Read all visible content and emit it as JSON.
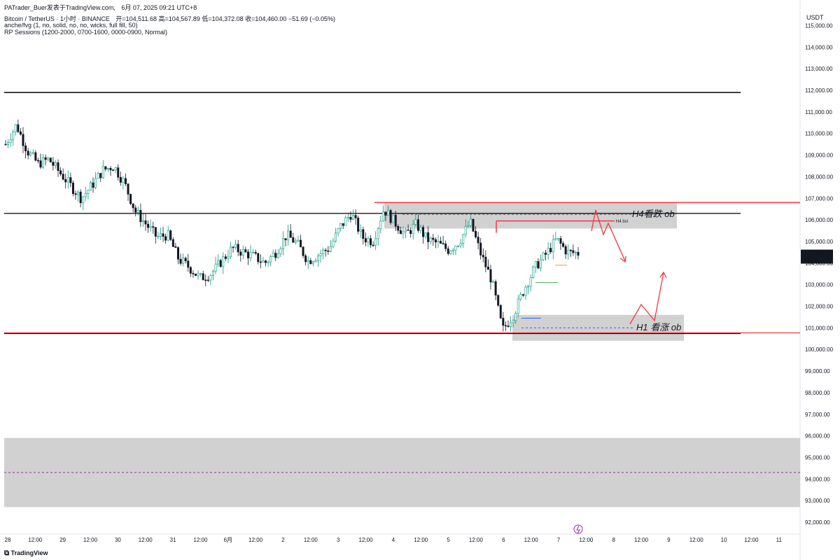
{
  "header": {
    "publisher": "PATrader_Buer发表于TradingView.com,",
    "datetime": "6月 07, 2025 09:21 UTC+8",
    "symbol_line": "Bitcoin / TetherUS · 1小时 · BINANCE",
    "ohlc": "开=104,511.68  高=104,567.89  低=104,372.08  收=104,460.00  −51.69 (−0.05%)",
    "indicator_1": "anche/fvg (1, no, solid, no, no, wicks, full fill, 50)",
    "indicator_2": "RP Sessions (1200-2000, 0700-1600, 0000-0900, Normal)"
  },
  "currency": "USDT",
  "footer_brand": "TradingView",
  "last_price": {
    "value": "104,460.00",
    "countdown": "38:51"
  },
  "colors": {
    "up": "#089981",
    "down": "#131722",
    "zone": "#d1d1d1",
    "red": "#f23645",
    "hline": "#000000",
    "purple": "#9c27b0",
    "blue": "#2962ff",
    "green": "#4caf50",
    "orange": "#ff9800"
  },
  "annotations": {
    "h4_bear": "H4看跌 ob",
    "h1_bull": "H1 看涨 ob",
    "h4_bsl": "H4 bsl"
  },
  "chart_data": {
    "type": "candlestick",
    "title": "",
    "xlabel": "",
    "ylabel": "",
    "ylim": [
      91500,
      115500
    ],
    "y_ticks": [
      92000,
      93000,
      94000,
      95000,
      96000,
      97000,
      98000,
      99000,
      100000,
      101000,
      102000,
      103000,
      104000,
      105000,
      106000,
      107000,
      108000,
      109000,
      110000,
      111000,
      112000,
      113000,
      114000,
      115000
    ],
    "y_tick_labels": [
      "92,000.00",
      "93,000.00",
      "94,000.00",
      "95,000.00",
      "96,000.00",
      "97,000.00",
      "98,000.00",
      "99,000.00",
      "100,000.00",
      "101,000.00",
      "102,000.00",
      "103,000.00",
      "104,000.00",
      "105,000.00",
      "106,000.00",
      "107,000.00",
      "108,000.00",
      "109,000.00",
      "110,000.00",
      "111,000.00",
      "112,000.00",
      "113,000.00",
      "114,000.00",
      "115,000.00"
    ],
    "x_tick_labels": [
      "28",
      "12:00",
      "29",
      "12:00",
      "30",
      "12:00",
      "31",
      "12:00",
      "6月",
      "12:00",
      "2",
      "12:00",
      "3",
      "12:00",
      "4",
      "12:00",
      "5",
      "12:00",
      "6",
      "12:00",
      "7",
      "12:00",
      "8",
      "12:00",
      "9",
      "12:00",
      "10",
      "12:00",
      "11"
    ],
    "horizontal_levels": [
      111900,
      106300,
      100750
    ],
    "red_levels": [
      106800,
      100800
    ],
    "zones": [
      {
        "name": "H4 bearish ob",
        "from": 105600,
        "to": 106800
      },
      {
        "name": "H1 bullish ob",
        "from": 100400,
        "to": 101600
      },
      {
        "name": "lower zone",
        "from": 92700,
        "to": 95900,
        "mid": 94300
      }
    ],
    "price_path": [
      [
        0,
        109500
      ],
      [
        1,
        110400
      ],
      [
        2,
        109200
      ],
      [
        3,
        108600
      ],
      [
        4,
        108800
      ],
      [
        5,
        108200
      ],
      [
        6,
        107600
      ],
      [
        7,
        107000
      ],
      [
        8,
        107600
      ],
      [
        9,
        108300
      ],
      [
        10,
        108500
      ],
      [
        11,
        107700
      ],
      [
        12,
        106400
      ],
      [
        13,
        105800
      ],
      [
        14,
        105200
      ],
      [
        15,
        105300
      ],
      [
        16,
        104200
      ],
      [
        17,
        103800
      ],
      [
        18,
        103300
      ],
      [
        19,
        103500
      ],
      [
        20,
        104100
      ],
      [
        21,
        104700
      ],
      [
        22,
        104500
      ],
      [
        23,
        104300
      ],
      [
        24,
        104000
      ],
      [
        25,
        104500
      ],
      [
        26,
        105300
      ],
      [
        27,
        104900
      ],
      [
        28,
        104100
      ],
      [
        29,
        104400
      ],
      [
        30,
        104700
      ],
      [
        31,
        105700
      ],
      [
        32,
        106300
      ],
      [
        33,
        105200
      ],
      [
        34,
        105000
      ],
      [
        35,
        106500
      ],
      [
        36,
        105900
      ],
      [
        37,
        105300
      ],
      [
        38,
        105800
      ],
      [
        39,
        105100
      ],
      [
        40,
        104900
      ],
      [
        41,
        104600
      ],
      [
        42,
        105000
      ],
      [
        43,
        105900
      ],
      [
        44,
        104400
      ],
      [
        45,
        103200
      ],
      [
        46,
        100900
      ],
      [
        47,
        101600
      ],
      [
        48,
        102800
      ],
      [
        49,
        103800
      ],
      [
        50,
        104400
      ],
      [
        51,
        105100
      ],
      [
        52,
        104500
      ],
      [
        53,
        104460
      ]
    ]
  }
}
